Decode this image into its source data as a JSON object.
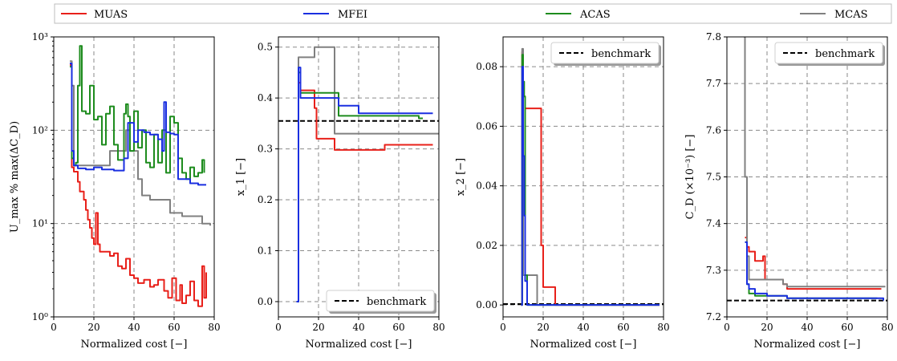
{
  "colors": {
    "MUAS": "#e8201a",
    "MFEI": "#1a2fe0",
    "ACAS": "#1e8c1e",
    "MCAS": "#808080",
    "benchmark": "#000000"
  },
  "legend": {
    "items": [
      "MUAS",
      "MFEI",
      "ACAS",
      "MCAS"
    ]
  },
  "chart_data": [
    {
      "type": "line",
      "xlabel": "Normalized cost [−]",
      "ylabel": "U_max % max(ΔC_D)",
      "xlim": [
        0,
        80
      ],
      "ylim": [
        1,
        1000
      ],
      "yscale": "log",
      "xticks": [
        0,
        20,
        40,
        60,
        80
      ],
      "yticks": [
        1,
        10,
        100,
        1000
      ],
      "yticklabels": [
        "10⁰",
        "10¹",
        "10²",
        "10³"
      ],
      "grid": true,
      "series": [
        {
          "name": "MUAS",
          "x": [
            8,
            9,
            10,
            12,
            13,
            15,
            16,
            17,
            18,
            19,
            20,
            21,
            22,
            23,
            26,
            28,
            30,
            32,
            34,
            36,
            38,
            40,
            42,
            45,
            48,
            50,
            52,
            55,
            57,
            59,
            61,
            63,
            64,
            66,
            68,
            70,
            72,
            74,
            75,
            76
          ],
          "y": [
            500,
            40,
            36,
            28,
            22,
            18,
            14,
            11,
            9,
            7,
            6,
            13,
            6,
            5,
            5,
            4.5,
            4.8,
            3.5,
            3.3,
            4.2,
            2.8,
            2.6,
            2.3,
            2.5,
            2.1,
            2.2,
            2.5,
            1.9,
            1.6,
            2.6,
            1.5,
            2.2,
            1.4,
            1.7,
            2.4,
            1.5,
            1.3,
            3.5,
            1.6,
            3
          ]
        },
        {
          "name": "MFEI",
          "x": [
            8,
            9,
            10,
            12,
            16,
            20,
            24,
            30,
            35,
            37,
            40,
            42,
            45,
            48,
            52,
            54,
            55,
            56,
            58,
            60,
            62,
            65,
            68,
            72,
            76
          ],
          "y": [
            520,
            60,
            42,
            39,
            38,
            40,
            38,
            37,
            50,
            120,
            75,
            100,
            95,
            90,
            80,
            60,
            200,
            95,
            92,
            90,
            30,
            30,
            27,
            26,
            26
          ]
        },
        {
          "name": "ACAS",
          "x": [
            8,
            9,
            10,
            11,
            12,
            13,
            14,
            16,
            18,
            20,
            22,
            24,
            26,
            28,
            30,
            32,
            35,
            36,
            37,
            38,
            40,
            42,
            44,
            46,
            48,
            50,
            52,
            54,
            56,
            58,
            60,
            62,
            64,
            66,
            68,
            70,
            72,
            74,
            75
          ],
          "y": [
            480,
            50,
            42,
            45,
            300,
            800,
            160,
            150,
            300,
            130,
            140,
            70,
            150,
            180,
            70,
            48,
            150,
            190,
            140,
            60,
            160,
            65,
            100,
            45,
            40,
            90,
            45,
            100,
            35,
            140,
            120,
            50,
            35,
            30,
            40,
            32,
            35,
            48,
            35
          ]
        },
        {
          "name": "MCAS",
          "x": [
            8,
            9,
            10,
            20,
            28,
            34,
            36,
            38,
            42,
            44,
            48,
            58,
            64,
            74,
            78
          ],
          "y": [
            550,
            300,
            42,
            42,
            60,
            60,
            100,
            60,
            30,
            20,
            18,
            13,
            12,
            10,
            9.5
          ]
        }
      ]
    },
    {
      "type": "line",
      "xlabel": "Normalized cost [−]",
      "ylabel": "x_1 [−]",
      "xlim": [
        0,
        80
      ],
      "ylim": [
        -0.03,
        0.52
      ],
      "xticks": [
        0,
        20,
        40,
        60,
        80
      ],
      "yticks": [
        0.0,
        0.1,
        0.2,
        0.3,
        0.4,
        0.5
      ],
      "yticklabels": [
        "0.0",
        "0.1",
        "0.2",
        "0.3",
        "0.4",
        "0.5"
      ],
      "grid": true,
      "legend": {
        "entries": [
          "benchmark"
        ],
        "placement": "bottom-right"
      },
      "benchmark": 0.355,
      "series": [
        {
          "name": "MUAS",
          "x": [
            9,
            9.5,
            10,
            11,
            12,
            18,
            19,
            20,
            28,
            53,
            77
          ],
          "y": [
            0.0,
            0.0,
            0.43,
            0.415,
            0.415,
            0.38,
            0.32,
            0.32,
            0.298,
            0.308,
            0.308
          ]
        },
        {
          "name": "MFEI",
          "x": [
            9,
            9.5,
            10,
            11,
            12,
            28,
            30,
            35,
            40,
            77
          ],
          "y": [
            0.0,
            0.0,
            0.46,
            0.4,
            0.4,
            0.4,
            0.385,
            0.385,
            0.37,
            0.37
          ]
        },
        {
          "name": "ACAS",
          "x": [
            9,
            9.5,
            10,
            11,
            12,
            28,
            30,
            40,
            70,
            72
          ],
          "y": [
            0.0,
            0.0,
            0.45,
            0.41,
            0.41,
            0.41,
            0.365,
            0.365,
            0.36,
            0.36
          ]
        },
        {
          "name": "MCAS",
          "x": [
            9,
            9.5,
            10,
            11,
            18,
            28,
            80
          ],
          "y": [
            0.0,
            0.0,
            0.48,
            0.48,
            0.5,
            0.33,
            0.33
          ]
        }
      ]
    },
    {
      "type": "line",
      "xlabel": "Normalized cost [−]",
      "ylabel": "x_2 [−]",
      "xlim": [
        0,
        80
      ],
      "ylim": [
        -0.004,
        0.09
      ],
      "xticks": [
        0,
        20,
        40,
        60,
        80
      ],
      "yticks": [
        0.0,
        0.02,
        0.04,
        0.06,
        0.08
      ],
      "yticklabels": [
        "0.00",
        "0.02",
        "0.04",
        "0.06",
        "0.08"
      ],
      "grid": true,
      "legend": {
        "entries": [
          "benchmark"
        ],
        "placement": "top-right"
      },
      "benchmark": 0.0003,
      "series": [
        {
          "name": "MUAS",
          "x": [
            9,
            9.5,
            10,
            11,
            12,
            18,
            19,
            20,
            22,
            26,
            28,
            78
          ],
          "y": [
            0.0,
            0.085,
            0.07,
            0.066,
            0.066,
            0.066,
            0.02,
            0.006,
            0.006,
            0.0,
            0.0,
            0.0
          ]
        },
        {
          "name": "MFEI",
          "x": [
            9,
            9.5,
            10,
            10.5,
            11,
            12,
            78
          ],
          "y": [
            0.0,
            0.08,
            0.05,
            0.03,
            0.008,
            0.0,
            0.0
          ]
        },
        {
          "name": "ACAS",
          "x": [
            9,
            9.5,
            10,
            10.5,
            11,
            12,
            78
          ],
          "y": [
            0.0,
            0.084,
            0.075,
            0.07,
            0.01,
            0.0,
            0.0
          ]
        },
        {
          "name": "MCAS",
          "x": [
            9,
            9.5,
            10,
            16,
            17,
            78
          ],
          "y": [
            0.0,
            0.086,
            0.01,
            0.01,
            0.0,
            0.0
          ]
        }
      ]
    },
    {
      "type": "line",
      "xlabel": "Normalized cost [−]",
      "ylabel": "C_D (×10⁻³) [−]",
      "xlim": [
        0,
        80
      ],
      "ylim": [
        7.2,
        7.8
      ],
      "xticks": [
        0,
        20,
        40,
        60,
        80
      ],
      "yticks": [
        7.2,
        7.3,
        7.4,
        7.5,
        7.6,
        7.7,
        7.8
      ],
      "yticklabels": [
        "7.2",
        "7.3",
        "7.4",
        "7.5",
        "7.6",
        "7.7",
        "7.8"
      ],
      "grid": true,
      "legend": {
        "entries": [
          "benchmark"
        ],
        "placement": "top-right"
      },
      "benchmark": 7.235,
      "series": [
        {
          "name": "MUAS",
          "x": [
            9,
            10,
            11,
            14,
            18,
            19,
            22,
            28,
            30,
            77
          ],
          "y": [
            7.37,
            7.35,
            7.34,
            7.32,
            7.33,
            7.28,
            7.28,
            7.27,
            7.26,
            7.26
          ]
        },
        {
          "name": "MFEI",
          "x": [
            9,
            10,
            11,
            14,
            20,
            30,
            40,
            78
          ],
          "y": [
            7.36,
            7.27,
            7.26,
            7.25,
            7.245,
            7.24,
            7.24,
            7.235
          ]
        },
        {
          "name": "ACAS",
          "x": [
            9,
            10,
            11,
            14,
            20,
            30,
            40,
            75
          ],
          "y": [
            7.36,
            7.27,
            7.25,
            7.245,
            7.245,
            7.24,
            7.24,
            7.24
          ]
        },
        {
          "name": "MCAS",
          "x": [
            8.5,
            9,
            10,
            11,
            20,
            28,
            30,
            79
          ],
          "y": [
            7.8,
            7.5,
            7.33,
            7.28,
            7.28,
            7.27,
            7.265,
            7.265
          ]
        }
      ]
    }
  ]
}
